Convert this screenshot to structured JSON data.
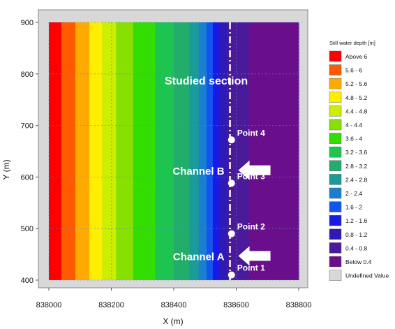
{
  "chart_data": {
    "type": "heatmap",
    "xlabel": "X (m)",
    "ylabel": "Y (m)",
    "xlim": [
      838000,
      838800
    ],
    "ylim": [
      400,
      900
    ],
    "x_ticks": [
      838000,
      838200,
      838400,
      838600,
      838800
    ],
    "y_ticks": [
      400,
      500,
      600,
      700,
      800,
      900
    ],
    "grid": true,
    "legend": {
      "title": "Still water depth [m]",
      "placement": "right",
      "entries": [
        {
          "label": "Above  6",
          "color": "#ff0000"
        },
        {
          "label": "5.6 -  6",
          "color": "#ff5a00"
        },
        {
          "label": "5.2 - 5.6",
          "color": "#ffaa00"
        },
        {
          "label": "4.8 - 5.2",
          "color": "#ffee00"
        },
        {
          "label": "4.4 - 4.8",
          "color": "#ccee00"
        },
        {
          "label": "4 - 4.4",
          "color": "#88e000"
        },
        {
          "label": "3.6 -  4",
          "color": "#33dd00"
        },
        {
          "label": "3.2 - 3.6",
          "color": "#1ec450"
        },
        {
          "label": "2.8 - 3.2",
          "color": "#22ad6a"
        },
        {
          "label": "2.4 - 2.8",
          "color": "#1b9a9a"
        },
        {
          "label": "2 - 2.4",
          "color": "#1a7fd0"
        },
        {
          "label": "1.6 -  2",
          "color": "#1155ee"
        },
        {
          "label": "1.2 - 1.6",
          "color": "#1a1ae6"
        },
        {
          "label": "0.8 - 1.2",
          "color": "#2e1ab4"
        },
        {
          "label": "0.4 - 0.8",
          "color": "#4a1a9a"
        },
        {
          "label": "Below 0.4",
          "color": "#6a0f8c"
        },
        {
          "label": "Undefined Value",
          "color": "#d8d8d8"
        }
      ]
    },
    "depth_bands_x": [
      {
        "band": "Above  6",
        "x_start": 838000,
        "x_end": 838040
      },
      {
        "band": "5.6 -  6",
        "x_start": 838040,
        "x_end": 838085
      },
      {
        "band": "5.2 - 5.6",
        "x_start": 838085,
        "x_end": 838130
      },
      {
        "band": "4.8 - 5.2",
        "x_start": 838130,
        "x_end": 838170
      },
      {
        "band": "4.4 - 4.8",
        "x_start": 838170,
        "x_end": 838215
      },
      {
        "band": "4 - 4.4",
        "x_start": 838215,
        "x_end": 838270
      },
      {
        "band": "3.6 -  4",
        "x_start": 838270,
        "x_end": 838340
      },
      {
        "band": "3.2 - 3.6",
        "x_start": 838340,
        "x_end": 838400
      },
      {
        "band": "2.8 - 3.2",
        "x_start": 838400,
        "x_end": 838450
      },
      {
        "band": "2.4 - 2.8",
        "x_start": 838450,
        "x_end": 838480
      },
      {
        "band": "2 - 2.4",
        "x_start": 838480,
        "x_end": 838505
      },
      {
        "band": "1.6 -  2",
        "x_start": 838505,
        "x_end": 838525
      },
      {
        "band": "1.2 - 1.6",
        "x_start": 838525,
        "x_end": 838545
      },
      {
        "band": "0.8 - 1.2",
        "x_start": 838545,
        "x_end": 838570
      },
      {
        "band": "0.4 - 0.8",
        "x_start": 838570,
        "x_end": 838640
      },
      {
        "band": "Below 0.4",
        "x_start": 838640,
        "x_end": 838800
      }
    ],
    "studied_section": {
      "label": "Studied section",
      "x": 838580
    },
    "points": [
      {
        "label": "Point 1",
        "x": 838585,
        "y": 410
      },
      {
        "label": "Point 2",
        "x": 838585,
        "y": 490
      },
      {
        "label": "Point 3",
        "x": 838585,
        "y": 588
      },
      {
        "label": "Point 4",
        "x": 838585,
        "y": 672
      }
    ],
    "channels": [
      {
        "label": "Channel A",
        "y": 447
      },
      {
        "label": "Channel B",
        "y": 613
      }
    ]
  }
}
